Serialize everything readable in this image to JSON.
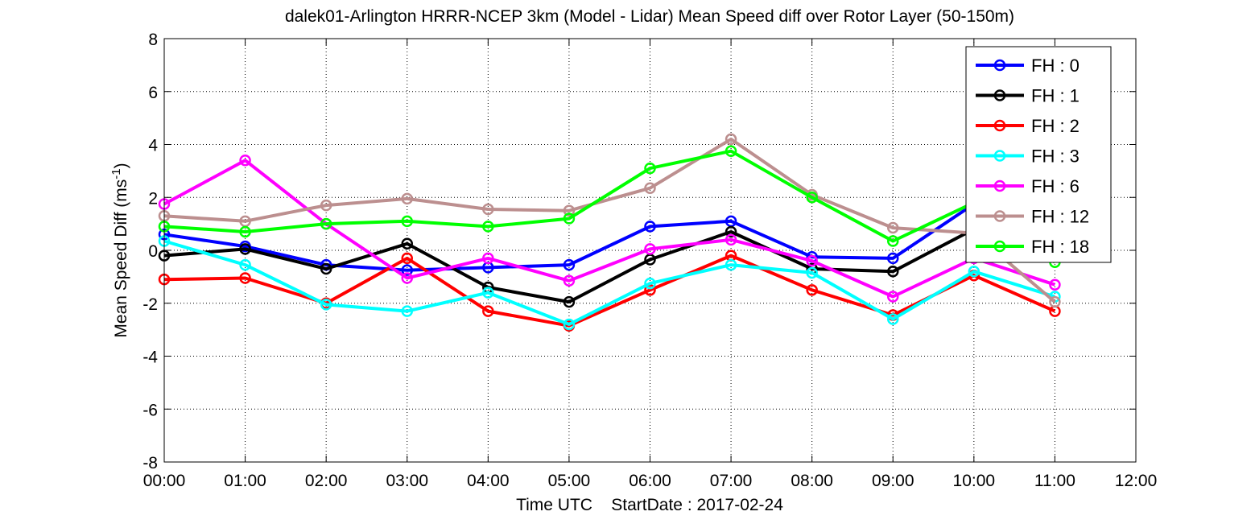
{
  "chart_data": {
    "type": "line",
    "title": "dalek01-Arlington HRRR-NCEP 3km (Model - Lidar) Mean Speed diff over Rotor Layer (50-150m)",
    "xlabel": "Time UTC    StartDate : 2017-02-24",
    "ylabel_main": "Mean Speed Diff (ms",
    "ylabel_sup": "-1",
    "ylabel_end": ")",
    "x_ticks": [
      "00:00",
      "01:00",
      "02:00",
      "03:00",
      "04:00",
      "05:00",
      "06:00",
      "07:00",
      "08:00",
      "09:00",
      "10:00",
      "11:00",
      "12:00"
    ],
    "y_ticks": [
      "8",
      "6",
      "4",
      "2",
      "0",
      "-2",
      "-4",
      "-6",
      "-8"
    ],
    "xlim": [
      0,
      12
    ],
    "ylim": [
      -8,
      8
    ],
    "grid": true,
    "legend_position": "top-right",
    "series": [
      {
        "name": "FH : 0",
        "color": "#0000ff",
        "x": [
          0,
          1,
          2,
          3,
          4,
          5,
          6,
          7,
          8,
          9,
          10
        ],
        "y": [
          0.6,
          0.15,
          -0.55,
          -0.75,
          -0.65,
          -0.55,
          0.9,
          1.1,
          -0.25,
          -0.3,
          1.75
        ]
      },
      {
        "name": "FH : 1",
        "color": "#000000",
        "x": [
          0,
          1,
          2,
          3,
          4,
          5,
          6,
          7,
          8,
          9,
          10
        ],
        "y": [
          -0.2,
          0.05,
          -0.7,
          0.25,
          -1.4,
          -1.95,
          -0.35,
          0.7,
          -0.7,
          -0.8,
          0.8
        ]
      },
      {
        "name": "FH : 2",
        "color": "#ff0000",
        "x": [
          0,
          1,
          2,
          3,
          4,
          5,
          6,
          7,
          8,
          9,
          10,
          11
        ],
        "y": [
          -1.1,
          -1.05,
          -2.0,
          -0.3,
          -2.3,
          -2.85,
          -1.5,
          -0.2,
          -1.5,
          -2.45,
          -0.95,
          -2.3
        ]
      },
      {
        "name": "FH : 3",
        "color": "#00ffff",
        "x": [
          0,
          1,
          2,
          3,
          4,
          5,
          6,
          7,
          8,
          9,
          10,
          11
        ],
        "y": [
          0.35,
          -0.55,
          -2.05,
          -2.3,
          -1.6,
          -2.8,
          -1.25,
          -0.55,
          -0.85,
          -2.6,
          -0.8,
          -1.75
        ]
      },
      {
        "name": "FH : 6",
        "color": "#ff00ff",
        "x": [
          0,
          1,
          2,
          3,
          4,
          5,
          6,
          7,
          8,
          9,
          10,
          11
        ],
        "y": [
          1.75,
          3.4,
          1.0,
          -1.05,
          -0.3,
          -1.15,
          0.05,
          0.4,
          -0.4,
          -1.75,
          -0.3,
          -1.3
        ]
      },
      {
        "name": "FH : 12",
        "color": "#bc8f8f",
        "x": [
          0,
          1,
          2,
          3,
          4,
          5,
          6,
          7,
          8,
          9,
          10,
          11
        ],
        "y": [
          1.3,
          1.1,
          1.7,
          1.95,
          1.55,
          1.5,
          2.35,
          4.2,
          2.1,
          0.85,
          0.65,
          -1.95
        ]
      },
      {
        "name": "FH : 18",
        "color": "#00ff00",
        "x": [
          0,
          1,
          2,
          3,
          4,
          5,
          6,
          7,
          8,
          9,
          10,
          11
        ],
        "y": [
          0.9,
          0.7,
          1.0,
          1.1,
          0.9,
          1.2,
          3.1,
          3.75,
          2.0,
          0.35,
          1.8,
          -0.45
        ]
      }
    ]
  }
}
